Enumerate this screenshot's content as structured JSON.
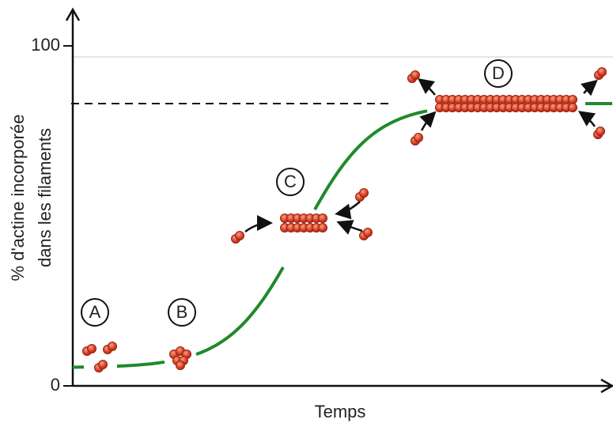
{
  "y_axis": {
    "label": [
      "% d'actine incorporée",
      "dans les filaments"
    ],
    "ticks": [
      "0",
      "100"
    ]
  },
  "x_axis": {
    "label": "Temps"
  },
  "stages": [
    {
      "label": "A"
    },
    {
      "label": "B"
    },
    {
      "label": "C"
    },
    {
      "label": "D"
    }
  ]
}
